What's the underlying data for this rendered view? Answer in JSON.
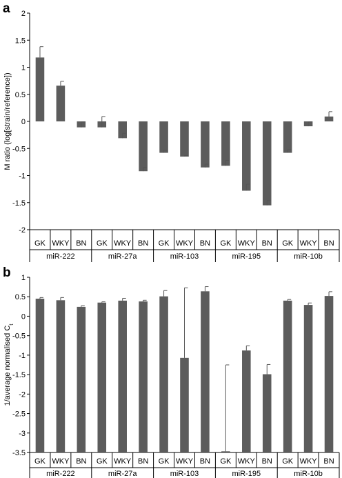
{
  "colors": {
    "bar": "#5c5c5c",
    "axis": "#000000"
  },
  "chart_data": [
    {
      "panel_label": "a",
      "type": "bar",
      "ylabel": "M ratio (log[strain/reference])",
      "ylim": [
        -2,
        2
      ],
      "yticks": [
        2,
        1.5,
        1,
        0.5,
        0,
        -0.5,
        -1,
        -1.5,
        -2
      ],
      "ytick_labels": [
        "2",
        "1.5",
        "1",
        "0.5",
        "0",
        "-0.5",
        "-1",
        "-1.5",
        "-2"
      ],
      "bar_base": 0,
      "groups": [
        {
          "name": "miR-222",
          "categories": [
            "GK",
            "WKY",
            "BN"
          ],
          "values": [
            1.18,
            0.66,
            -0.11
          ],
          "errors": [
            0.2,
            0.08,
            0.1
          ]
        },
        {
          "name": "miR-27a",
          "categories": [
            "GK",
            "WKY",
            "BN"
          ],
          "values": [
            -0.11,
            -0.31,
            -0.92
          ],
          "errors": [
            0.2,
            0.09,
            0.07
          ]
        },
        {
          "name": "miR-103",
          "categories": [
            "GK",
            "WKY",
            "BN"
          ],
          "values": [
            -0.58,
            -0.65,
            -0.85
          ],
          "errors": [
            0.05,
            0.02,
            0.06
          ]
        },
        {
          "name": "miR-195",
          "categories": [
            "GK",
            "WKY",
            "BN"
          ],
          "values": [
            -0.82,
            -1.28,
            -1.55
          ],
          "errors": [
            0.1,
            0.12,
            0.09
          ]
        },
        {
          "name": "miR-10b",
          "categories": [
            "GK",
            "WKY",
            "BN"
          ],
          "values": [
            -0.58,
            -0.09,
            0.09
          ],
          "errors": [
            0.06,
            0.08,
            0.09
          ]
        }
      ]
    },
    {
      "panel_label": "b",
      "type": "bar",
      "ylabel": "1/average normalised C",
      "ylabel_subscript": "t",
      "ylim": [
        -3.5,
        1
      ],
      "yticks": [
        1,
        0.5,
        0,
        -0.5,
        -1,
        -1.5,
        -2,
        -2.5,
        -3,
        -3.5
      ],
      "ytick_labels": [
        "1",
        "0.5",
        "0",
        "-0.5",
        "-1",
        "-1.5",
        "-2",
        "-2.5",
        "-3",
        "-3.5"
      ],
      "bar_base": -3.5,
      "groups": [
        {
          "name": "miR-222",
          "categories": [
            "GK",
            "WKY",
            "BN"
          ],
          "values": [
            0.45,
            0.41,
            0.24
          ],
          "errors": [
            0.03,
            0.07,
            0.03
          ]
        },
        {
          "name": "miR-27a",
          "categories": [
            "GK",
            "WKY",
            "BN"
          ],
          "values": [
            0.35,
            0.4,
            0.38
          ],
          "errors": [
            0.02,
            0.06,
            0.03
          ]
        },
        {
          "name": "miR-103",
          "categories": [
            "GK",
            "WKY",
            "BN"
          ],
          "values": [
            0.51,
            -1.07,
            0.64
          ],
          "errors": [
            0.15,
            1.8,
            0.12
          ]
        },
        {
          "name": "miR-195",
          "categories": [
            "GK",
            "WKY",
            "BN"
          ],
          "values": [
            -3.47,
            -0.88,
            -1.49
          ],
          "errors": [
            2.22,
            0.12,
            0.25
          ]
        },
        {
          "name": "miR-10b",
          "categories": [
            "GK",
            "WKY",
            "BN"
          ],
          "values": [
            0.4,
            0.29,
            0.52
          ],
          "errors": [
            0.03,
            0.05,
            0.11
          ]
        }
      ]
    }
  ]
}
